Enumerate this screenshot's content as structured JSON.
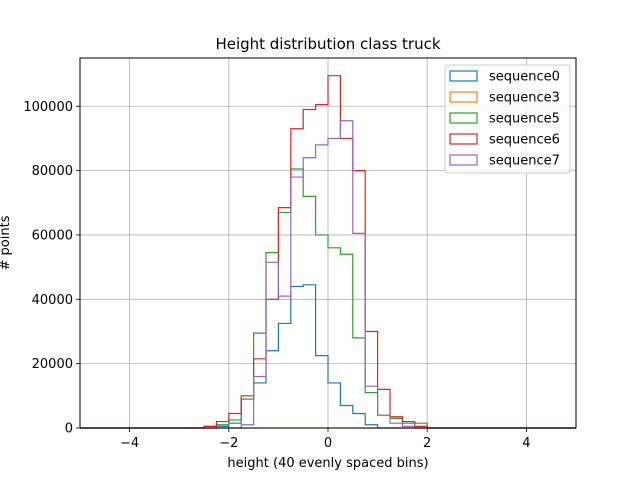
{
  "chart_data": {
    "type": "histogram-step",
    "title": "Height distribution class truck",
    "xlabel": "height (40 evenly spaced bins)",
    "ylabel": "# points",
    "xlim": [
      -5,
      5
    ],
    "ylim": [
      0,
      115000
    ],
    "xticks": [
      -4,
      -2,
      0,
      2,
      4
    ],
    "xtick_labels": [
      "−4",
      "−2",
      "0",
      "2",
      "4"
    ],
    "yticks": [
      0,
      20000,
      40000,
      60000,
      80000,
      100000
    ],
    "ytick_labels": [
      "0",
      "20000",
      "40000",
      "60000",
      "80000",
      "100000"
    ],
    "grid": true,
    "legend_position": "top-right",
    "bin_edges": [
      -5.0,
      -4.75,
      -4.5,
      -4.25,
      -4.0,
      -3.75,
      -3.5,
      -3.25,
      -3.0,
      -2.75,
      -2.5,
      -2.25,
      -2.0,
      -1.75,
      -1.5,
      -1.25,
      -1.0,
      -0.75,
      -0.5,
      -0.25,
      0.0,
      0.25,
      0.5,
      0.75,
      1.0,
      1.25,
      1.5,
      1.75,
      2.0,
      2.25,
      2.5,
      2.75,
      3.0,
      3.25,
      3.5,
      3.75,
      4.0,
      4.25,
      4.5,
      4.75,
      5.0
    ],
    "series": [
      {
        "name": "sequence0",
        "color": "#1f77b4",
        "values": [
          0,
          0,
          0,
          0,
          0,
          0,
          0,
          0,
          0,
          0,
          0,
          500,
          1500,
          9000,
          14000,
          24000,
          32500,
          44000,
          44500,
          22500,
          14000,
          7000,
          4500,
          1000,
          0,
          0,
          0,
          0,
          0,
          0,
          0,
          0,
          0,
          0,
          0,
          0,
          0,
          0,
          0,
          0
        ]
      },
      {
        "name": "sequence3",
        "color": "#ff7f0e",
        "values": [
          0,
          0,
          0,
          0,
          0,
          0,
          0,
          0,
          0,
          0,
          0,
          0,
          0,
          0,
          0,
          0,
          0,
          0,
          0,
          0,
          0,
          0,
          0,
          0,
          0,
          0,
          0,
          0,
          0,
          0,
          0,
          0,
          0,
          0,
          0,
          0,
          0,
          0,
          0,
          0
        ]
      },
      {
        "name": "sequence5",
        "color": "#2ca02c",
        "values": [
          0,
          0,
          0,
          0,
          0,
          0,
          0,
          0,
          0,
          0,
          500,
          1000,
          2500,
          9000,
          29500,
          54500,
          67000,
          80500,
          72000,
          60000,
          56000,
          54000,
          28000,
          11000,
          4000,
          3000,
          1500,
          1500,
          0,
          0,
          0,
          0,
          0,
          0,
          0,
          0,
          0,
          0,
          0,
          0
        ]
      },
      {
        "name": "sequence6",
        "color": "#d62728",
        "values": [
          0,
          0,
          0,
          0,
          0,
          0,
          0,
          0,
          0,
          0,
          500,
          2000,
          4500,
          10000,
          21500,
          40000,
          68500,
          93000,
          99000,
          100500,
          109500,
          90000,
          80000,
          30000,
          12000,
          3500,
          2000,
          500,
          0,
          0,
          0,
          0,
          0,
          0,
          0,
          0,
          0,
          0,
          0,
          0
        ]
      },
      {
        "name": "sequence7",
        "color": "#9467bd",
        "values": [
          0,
          0,
          0,
          0,
          0,
          0,
          0,
          0,
          0,
          0,
          0,
          0,
          0,
          1000,
          16000,
          51500,
          41000,
          78000,
          84000,
          88000,
          90000,
          95500,
          60500,
          13000,
          4000,
          1500,
          500,
          0,
          0,
          0,
          0,
          0,
          0,
          0,
          0,
          0,
          0,
          0,
          0,
          0
        ]
      }
    ]
  }
}
